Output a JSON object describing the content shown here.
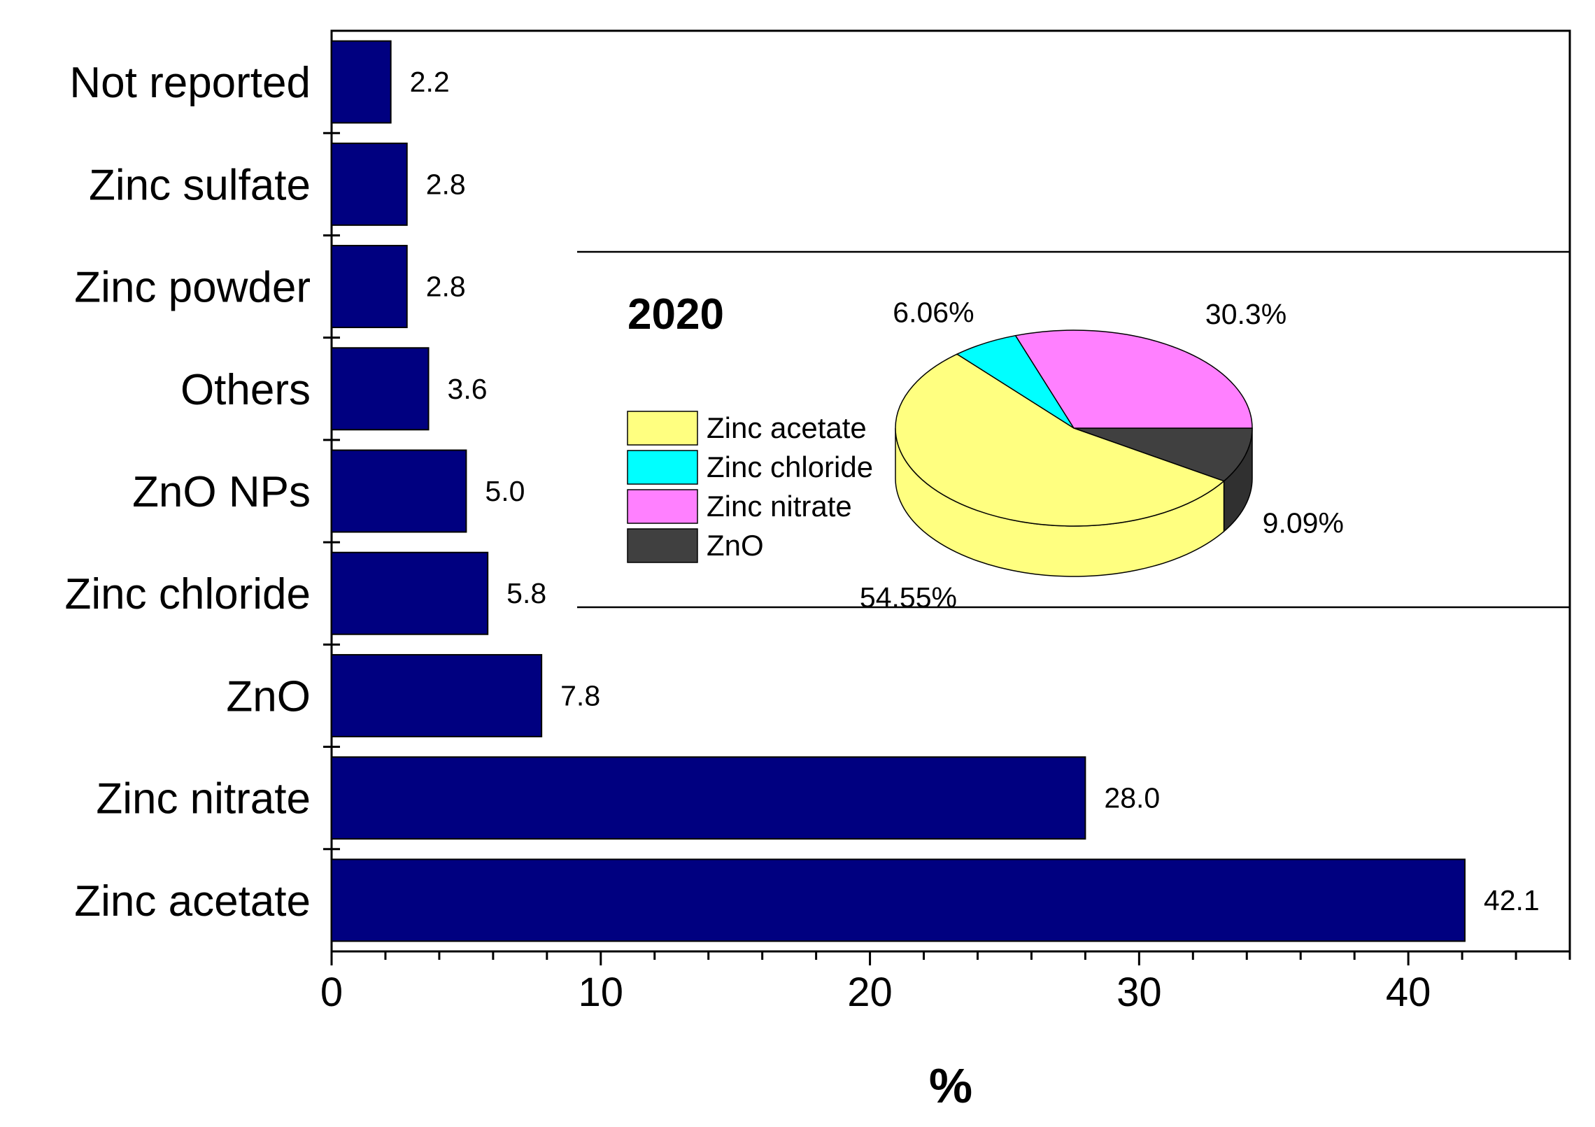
{
  "chart_data": [
    {
      "type": "bar",
      "orientation": "horizontal",
      "categories": [
        "Not reported",
        "Zinc sulfate",
        "Zinc powder",
        "Others",
        "ZnO NPs",
        "Zinc chloride",
        "ZnO",
        "Zinc nitrate",
        "Zinc acetate"
      ],
      "values": [
        2.2,
        2.8,
        2.8,
        3.6,
        5.0,
        5.8,
        7.8,
        28.0,
        42.1
      ],
      "value_labels": [
        "2.2",
        "2.8",
        "2.8",
        "3.6",
        "5.0",
        "5.8",
        "7.8",
        "28.0",
        "42.1"
      ],
      "title": "",
      "xlabel": "%",
      "ylabel": "",
      "xlim": [
        0,
        46
      ],
      "xticks": [
        0,
        10,
        20,
        30,
        40
      ],
      "xtick_labels": [
        "0",
        "10",
        "20",
        "30",
        "40"
      ],
      "bar_color": "#000080",
      "grid": false
    },
    {
      "type": "pie",
      "title": "2020",
      "labels": [
        "Zinc acetate",
        "Zinc chloride",
        "Zinc nitrate",
        "ZnO"
      ],
      "values": [
        54.55,
        6.06,
        30.3,
        9.09
      ],
      "value_labels": [
        "54.55%",
        "6.06%",
        "30.3%",
        "9.09%"
      ],
      "colors": [
        "#ffff80",
        "#00ffff",
        "#ff80ff",
        "#404040"
      ],
      "legend_position": "left"
    }
  ]
}
